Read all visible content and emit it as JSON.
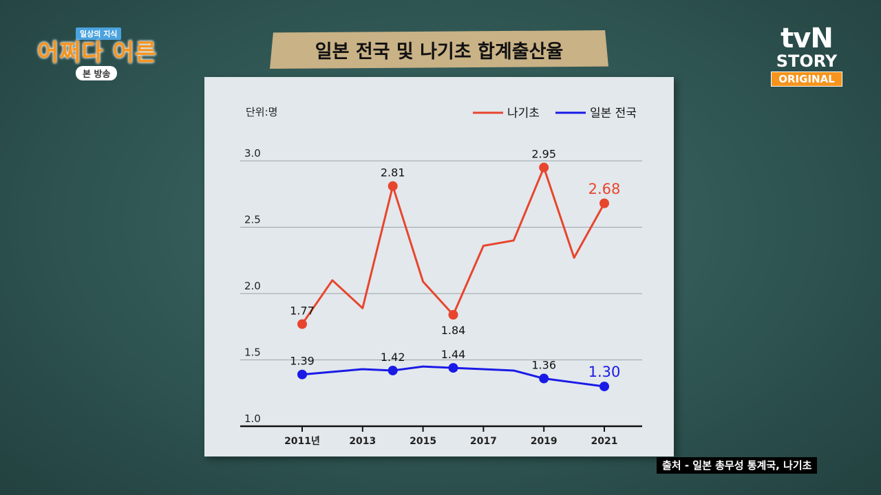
{
  "show": {
    "tag": "일상의 지식",
    "title": "어쩌다 어른",
    "sub": "본 방송"
  },
  "channel": {
    "brand": "tvN",
    "sub": "STORY",
    "tag": "ORIGINAL"
  },
  "banner_title": "일본 전국 및 나기초 합계출산율",
  "source": "출처 - 일본 총무성 통계국, 나기초",
  "chart_data": {
    "type": "line",
    "title": "일본 전국 및 나기초 합계출산율",
    "unit_label": "단위:명",
    "x": [
      2011,
      2012,
      2013,
      2014,
      2015,
      2016,
      2017,
      2018,
      2019,
      2020,
      2021
    ],
    "x_tick_labels": [
      "2011년",
      "2013",
      "2015",
      "2017",
      "2019",
      "2021"
    ],
    "x_tick_positions": [
      2011,
      2013,
      2015,
      2017,
      2019,
      2021
    ],
    "y_ticks": [
      "1.0",
      "1.5",
      "2.0",
      "2.5",
      "3.0"
    ],
    "ylim": [
      1.0,
      3.0
    ],
    "grid": true,
    "legend_position": "top-right",
    "series": [
      {
        "name": "나기초",
        "color": "#e8452e",
        "values": [
          1.77,
          2.1,
          1.89,
          2.81,
          2.09,
          1.84,
          2.36,
          2.4,
          2.95,
          2.27,
          2.68
        ],
        "labels": [
          {
            "index": 0,
            "text": "1.77",
            "pos": "above"
          },
          {
            "index": 3,
            "text": "2.81",
            "pos": "above"
          },
          {
            "index": 5,
            "text": "1.84",
            "pos": "below"
          },
          {
            "index": 8,
            "text": "2.95",
            "pos": "above"
          },
          {
            "index": 10,
            "text": "2.68",
            "pos": "above",
            "highlight": true
          }
        ],
        "markers": [
          0,
          3,
          5,
          8,
          10
        ]
      },
      {
        "name": "일본 전국",
        "color": "#1a1ae6",
        "values": [
          1.39,
          1.41,
          1.43,
          1.42,
          1.45,
          1.44,
          1.43,
          1.42,
          1.36,
          1.33,
          1.3
        ],
        "labels": [
          {
            "index": 0,
            "text": "1.39",
            "pos": "above"
          },
          {
            "index": 3,
            "text": "1.42",
            "pos": "above"
          },
          {
            "index": 5,
            "text": "1.44",
            "pos": "above"
          },
          {
            "index": 8,
            "text": "1.36",
            "pos": "above"
          },
          {
            "index": 10,
            "text": "1.30",
            "pos": "above",
            "highlight": true
          }
        ],
        "markers": [
          0,
          3,
          5,
          8,
          10
        ]
      }
    ]
  }
}
